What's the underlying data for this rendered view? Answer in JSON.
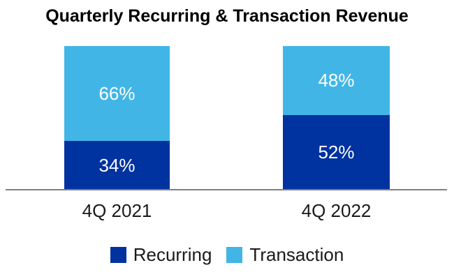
{
  "chart_data": {
    "type": "bar",
    "stacked": true,
    "title": "Quarterly Recurring & Transaction Revenue",
    "categories": [
      "4Q 2021",
      "4Q 2022"
    ],
    "series": [
      {
        "name": "Recurring",
        "color": "#0032A0",
        "values": [
          34,
          52
        ]
      },
      {
        "name": "Transaction",
        "color": "#41B6E6",
        "values": [
          66,
          48
        ]
      }
    ],
    "value_suffix": "%",
    "ylim": [
      0,
      100
    ],
    "grid": false,
    "legend_position": "bottom",
    "data_label_color": "#FFFFFF",
    "axis_line_color": "#7F7F7F",
    "title_color": "#000000",
    "tick_label_color": "#1A1A1A"
  }
}
